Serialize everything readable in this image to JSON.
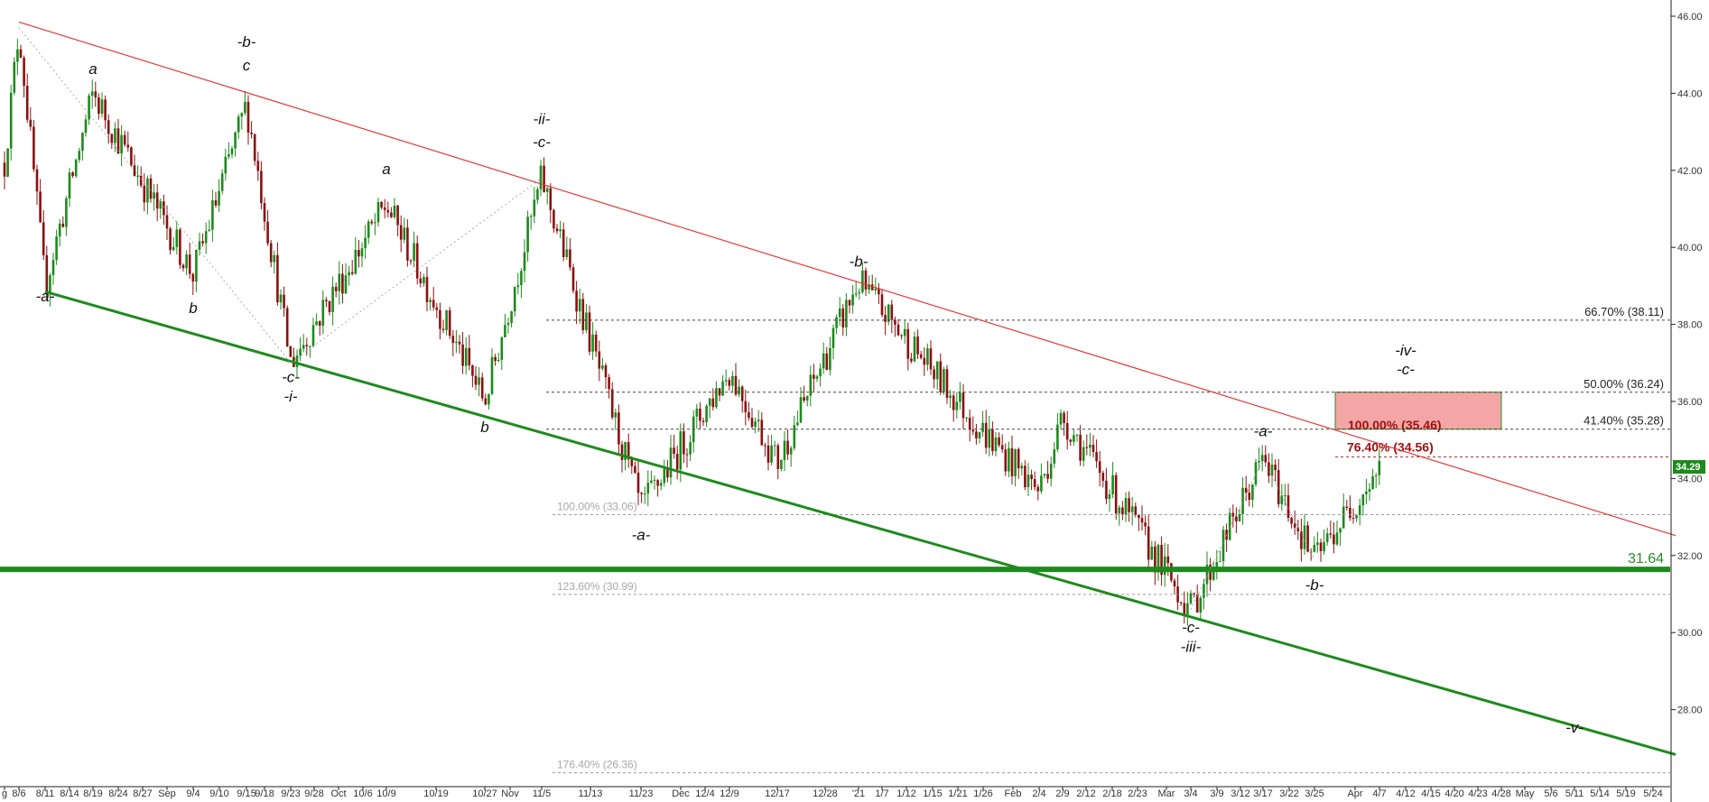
{
  "chart_data": {
    "type": "candlestick",
    "title": "",
    "xlabel": "",
    "ylabel": "",
    "ylim": [
      26.0,
      46.3
    ],
    "grid": false,
    "y_ticks": [
      "46.00",
      "44.00",
      "42.00",
      "40.00",
      "38.00",
      "36.00",
      "34.00",
      "32.00",
      "30.00",
      "28.00"
    ],
    "last_price": "34.29",
    "x_ticks": [
      "g",
      "8/6",
      "8/11",
      "8/14",
      "8/19",
      "8/24",
      "8/27",
      "Sep",
      "9/4",
      "9/10",
      "9/15",
      "9/18",
      "9/23",
      "9/28",
      "Oct",
      "10/6",
      "10/9",
      "10/19",
      "10/27",
      "Nov",
      "11/5",
      "11/13",
      "11/23",
      "Dec",
      "12/4",
      "12/9",
      "12/17",
      "12/28",
      "'21",
      "1/7",
      "1/12",
      "1/15",
      "1/21",
      "1/26",
      "Feb",
      "2/4",
      "2/9",
      "2/12",
      "2/18",
      "2/23",
      "Mar",
      "3/4",
      "3/9",
      "3/12",
      "3/17",
      "3/22",
      "3/25",
      "Apr",
      "4/7",
      "4/12",
      "4/15",
      "4/20",
      "4/23",
      "4/28",
      "May",
      "5/6",
      "5/11",
      "5/14",
      "5/19",
      "5/24"
    ],
    "price_path": [
      {
        "x": "g",
        "y": 42.2
      },
      {
        "x": "8/6",
        "y": 45.7
      },
      {
        "x": "8/11",
        "y": 39.0
      },
      {
        "x": "8/19",
        "y": 44.0
      },
      {
        "x": "9/4",
        "y": 39.3
      },
      {
        "x": "9/15",
        "y": 43.7
      },
      {
        "x": "9/23",
        "y": 37.0
      },
      {
        "x": "10/9",
        "y": 41.1
      },
      {
        "x": "10/27",
        "y": 36.0
      },
      {
        "x": "11/5",
        "y": 41.8
      },
      {
        "x": "11/23",
        "y": 33.2
      },
      {
        "x": "12/9",
        "y": 36.8
      },
      {
        "x": "12/17",
        "y": 34.4
      },
      {
        "x": "'21",
        "y": 39.1
      },
      {
        "x": "1/26",
        "y": 35.2
      },
      {
        "x": "2/4",
        "y": 33.7
      },
      {
        "x": "2/9",
        "y": 35.6
      },
      {
        "x": "3/4",
        "y": 30.6
      },
      {
        "x": "3/17",
        "y": 34.5
      },
      {
        "x": "3/25",
        "y": 31.9
      },
      {
        "x": "4/7",
        "y": 34.29
      }
    ],
    "series": [
      {
        "type": "trendline",
        "color": "#e03a3a",
        "points": [
          {
            "x": "8/6",
            "y": 45.85
          },
          {
            "x": "5/24",
            "y": 32.7
          }
        ]
      },
      {
        "type": "trendline",
        "color": "#1e8a1e",
        "points": [
          {
            "x": "8/11",
            "y": 38.85
          },
          {
            "x": "5/24",
            "y": 27.0
          }
        ]
      },
      {
        "type": "horizontal_level",
        "color": "#1e8a1e",
        "y": 31.64,
        "label": "31.64"
      }
    ],
    "fib_levels": [
      {
        "label": "66.70% (38.11)",
        "y": 38.11,
        "style": "dark"
      },
      {
        "label": "50.00% (36.24)",
        "y": 36.24,
        "style": "dark"
      },
      {
        "label": "41.40% (35.28)",
        "y": 35.28,
        "style": "dark"
      },
      {
        "label": "100.00% (33.06)",
        "y": 33.06,
        "style": "gray"
      },
      {
        "label": "123.60% (30.99)",
        "y": 30.99,
        "style": "gray"
      },
      {
        "label": "176.40% (26.36)",
        "y": 26.36,
        "style": "gray"
      },
      {
        "label": "76.40% (34.56)",
        "y": 34.56,
        "style": "red"
      }
    ],
    "target_zone": {
      "label": "100.00% (35.46)",
      "y_high": 36.24,
      "y_low": 35.28,
      "y": 35.46,
      "color": "#f4a6a6"
    },
    "annotations": [
      {
        "text": "-a-",
        "x": "8/11",
        "y": 38.6
      },
      {
        "text": "a",
        "x": "8/19",
        "y": 44.5
      },
      {
        "text": "-b-",
        "x": "9/15",
        "y": 45.2
      },
      {
        "text": "c",
        "x": "9/15",
        "y": 44.6
      },
      {
        "text": "b",
        "x": "9/4",
        "y": 38.3
      },
      {
        "text": "-c-",
        "x": "9/23",
        "y": 36.5
      },
      {
        "text": "-i-",
        "x": "9/23",
        "y": 36.0
      },
      {
        "text": "a",
        "x": "10/9",
        "y": 41.9
      },
      {
        "text": "b",
        "x": "10/27",
        "y": 35.2
      },
      {
        "text": "-ii-",
        "x": "11/5",
        "y": 43.2
      },
      {
        "text": "-c-",
        "x": "11/5",
        "y": 42.6
      },
      {
        "text": "-a-",
        "x": "11/23",
        "y": 32.4
      },
      {
        "text": "-b-",
        "x": "'21",
        "y": 39.5
      },
      {
        "text": "-a-",
        "x": "3/17",
        "y": 35.1
      },
      {
        "text": "-b-",
        "x": "3/25",
        "y": 31.1
      },
      {
        "text": "-c-",
        "x": "3/4",
        "y": 30.0
      },
      {
        "text": "-iii-",
        "x": "3/4",
        "y": 29.5
      },
      {
        "text": "-iv-",
        "x": "4/12",
        "y": 37.2
      },
      {
        "text": "-c-",
        "x": "4/12",
        "y": 36.7
      },
      {
        "text": "-v-",
        "x": "5/11",
        "y": 27.4
      }
    ]
  }
}
